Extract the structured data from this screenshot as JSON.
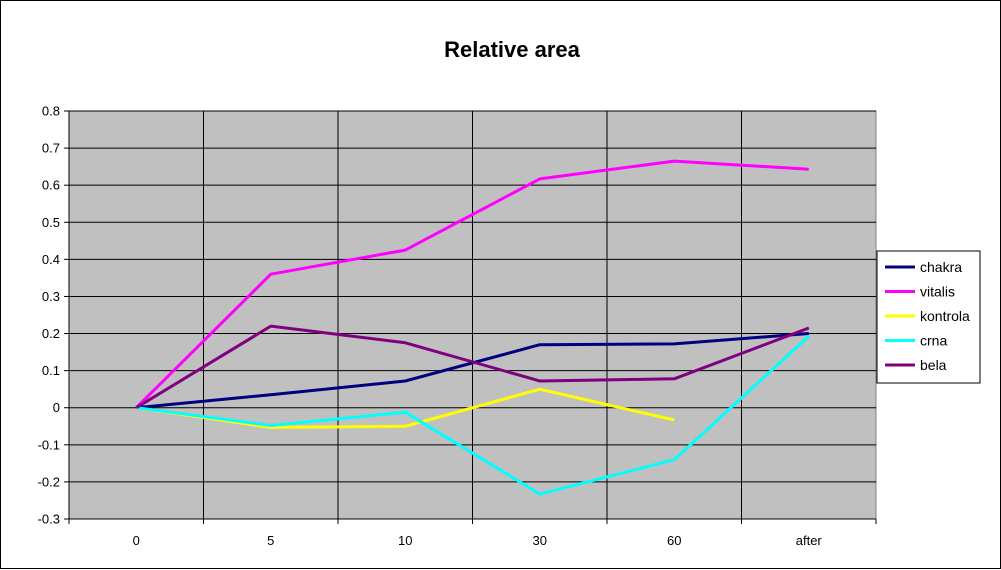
{
  "chart_data": {
    "type": "line",
    "title": "Relative area",
    "xlabel": "",
    "ylabel": "",
    "categories": [
      "0",
      "5",
      "10",
      "30",
      "60",
      "after"
    ],
    "ylim": [
      -0.3,
      0.8
    ],
    "yticks": [
      "0.8",
      "0.7",
      "0.6",
      "0.5",
      "0.4",
      "0.3",
      "0.2",
      "0.1",
      "0",
      "-0.1",
      "-0.2",
      "-0.3"
    ],
    "grid": true,
    "plot_background": "#C0C0C0",
    "legend_position": "right",
    "series": [
      {
        "name": "chakra",
        "color": "#000080",
        "values": [
          0,
          0.035,
          0.072,
          0.17,
          0.172,
          0.2
        ]
      },
      {
        "name": "vitalis",
        "color": "#FF00FF",
        "values": [
          0,
          0.36,
          0.425,
          0.617,
          0.665,
          0.643
        ]
      },
      {
        "name": "kontrola",
        "color": "#FFFF00",
        "values": [
          0,
          -0.053,
          -0.05,
          0.05,
          -0.033,
          null
        ]
      },
      {
        "name": "crna",
        "color": "#00FFFF",
        "values": [
          0,
          -0.048,
          -0.012,
          -0.233,
          -0.14,
          0.193
        ]
      },
      {
        "name": "bela",
        "color": "#800080",
        "values": [
          0,
          0.22,
          0.175,
          0.072,
          0.078,
          0.215
        ]
      }
    ]
  }
}
